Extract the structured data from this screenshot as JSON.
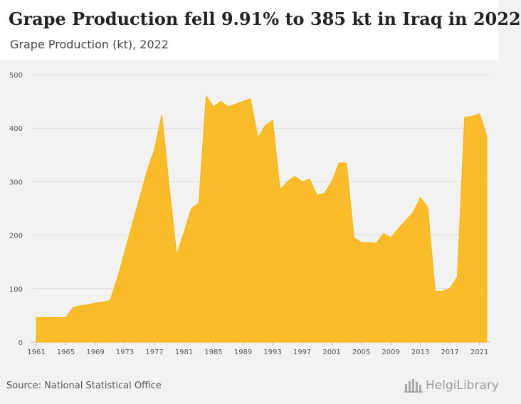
{
  "header": {
    "title": "Grape Production fell 9.91% to 385 kt in Iraq in 2022",
    "subtitle": "Grape Production (kt), 2022"
  },
  "footer": {
    "source": "Source: National Statistical Office",
    "logo_text": "HelgiLibrary"
  },
  "colors": {
    "area": "#fbbc2c",
    "area_stroke": "#f5b400",
    "grid": "#dddddd",
    "axis_text": "#555555"
  },
  "chart_data": {
    "type": "area",
    "title": "Grape Production fell 9.91% to 385 kt in Iraq in 2022",
    "subtitle": "Grape Production (kt), 2022",
    "ylim": [
      0,
      500
    ],
    "yticks": [
      0,
      100,
      200,
      300,
      400,
      500
    ],
    "xticks": [
      1961,
      1965,
      1969,
      1973,
      1977,
      1981,
      1985,
      1989,
      1993,
      1997,
      2001,
      2005,
      2009,
      2013,
      2017,
      2021
    ],
    "grid": true,
    "x": [
      1961,
      1962,
      1963,
      1964,
      1965,
      1966,
      1967,
      1968,
      1969,
      1970,
      1971,
      1972,
      1973,
      1974,
      1975,
      1976,
      1977,
      1978,
      1979,
      1980,
      1981,
      1982,
      1983,
      1984,
      1985,
      1986,
      1987,
      1988,
      1989,
      1990,
      1991,
      1992,
      1993,
      1994,
      1995,
      1996,
      1997,
      1998,
      1999,
      2000,
      2001,
      2002,
      2003,
      2004,
      2005,
      2006,
      2007,
      2008,
      2009,
      2010,
      2011,
      2012,
      2013,
      2014,
      2015,
      2016,
      2017,
      2018,
      2019,
      2020,
      2021,
      2022
    ],
    "values": [
      46,
      46,
      46,
      46,
      46,
      65,
      68,
      70,
      73,
      75,
      78,
      120,
      170,
      220,
      270,
      320,
      360,
      425,
      290,
      163,
      205,
      250,
      260,
      460,
      440,
      450,
      440,
      445,
      450,
      455,
      382,
      405,
      415,
      285,
      300,
      310,
      300,
      305,
      275,
      278,
      300,
      335,
      335,
      196,
      186,
      186,
      185,
      203,
      195,
      212,
      227,
      242,
      270,
      252,
      95,
      95,
      100,
      122,
      420,
      422,
      427,
      385
    ]
  }
}
